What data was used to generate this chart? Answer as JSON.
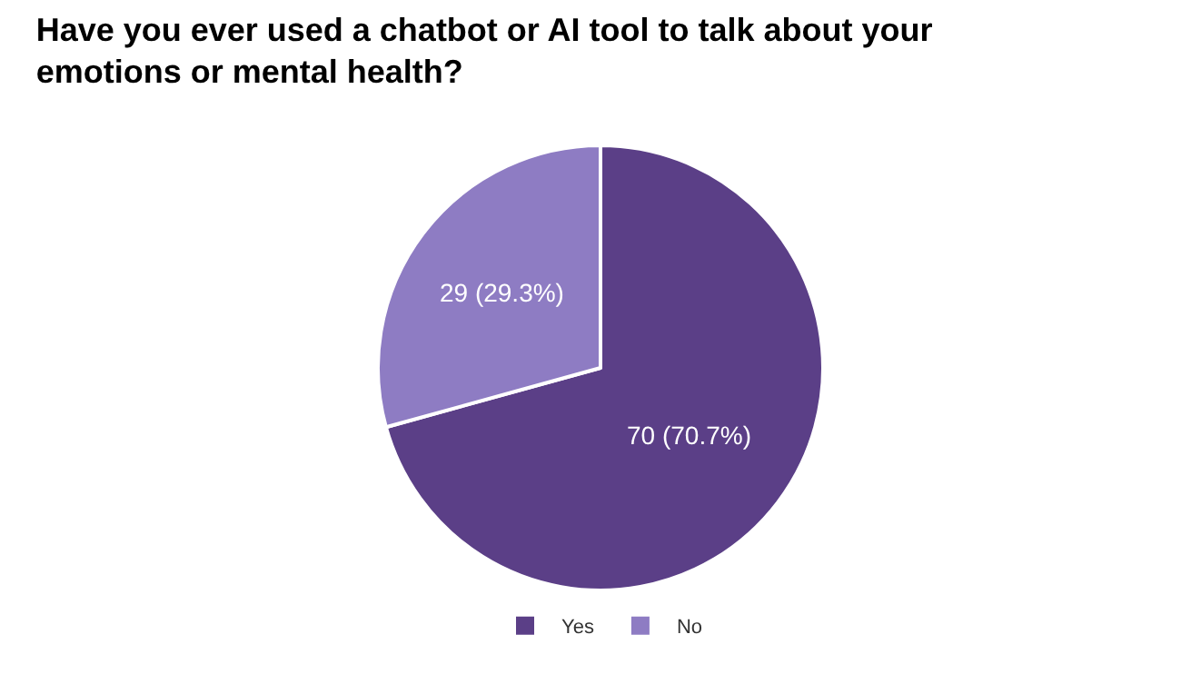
{
  "chart_data": {
    "type": "pie",
    "title": "Have you ever used a chatbot or AI tool to talk about your emotions or mental health?",
    "categories": [
      "Yes",
      "No"
    ],
    "values": [
      70,
      29
    ],
    "value_labels": [
      "70 (70.7%)",
      "29 (29.3%)"
    ],
    "colors": [
      "#5b3f87",
      "#8e7cc3"
    ],
    "legend": "bottom"
  }
}
